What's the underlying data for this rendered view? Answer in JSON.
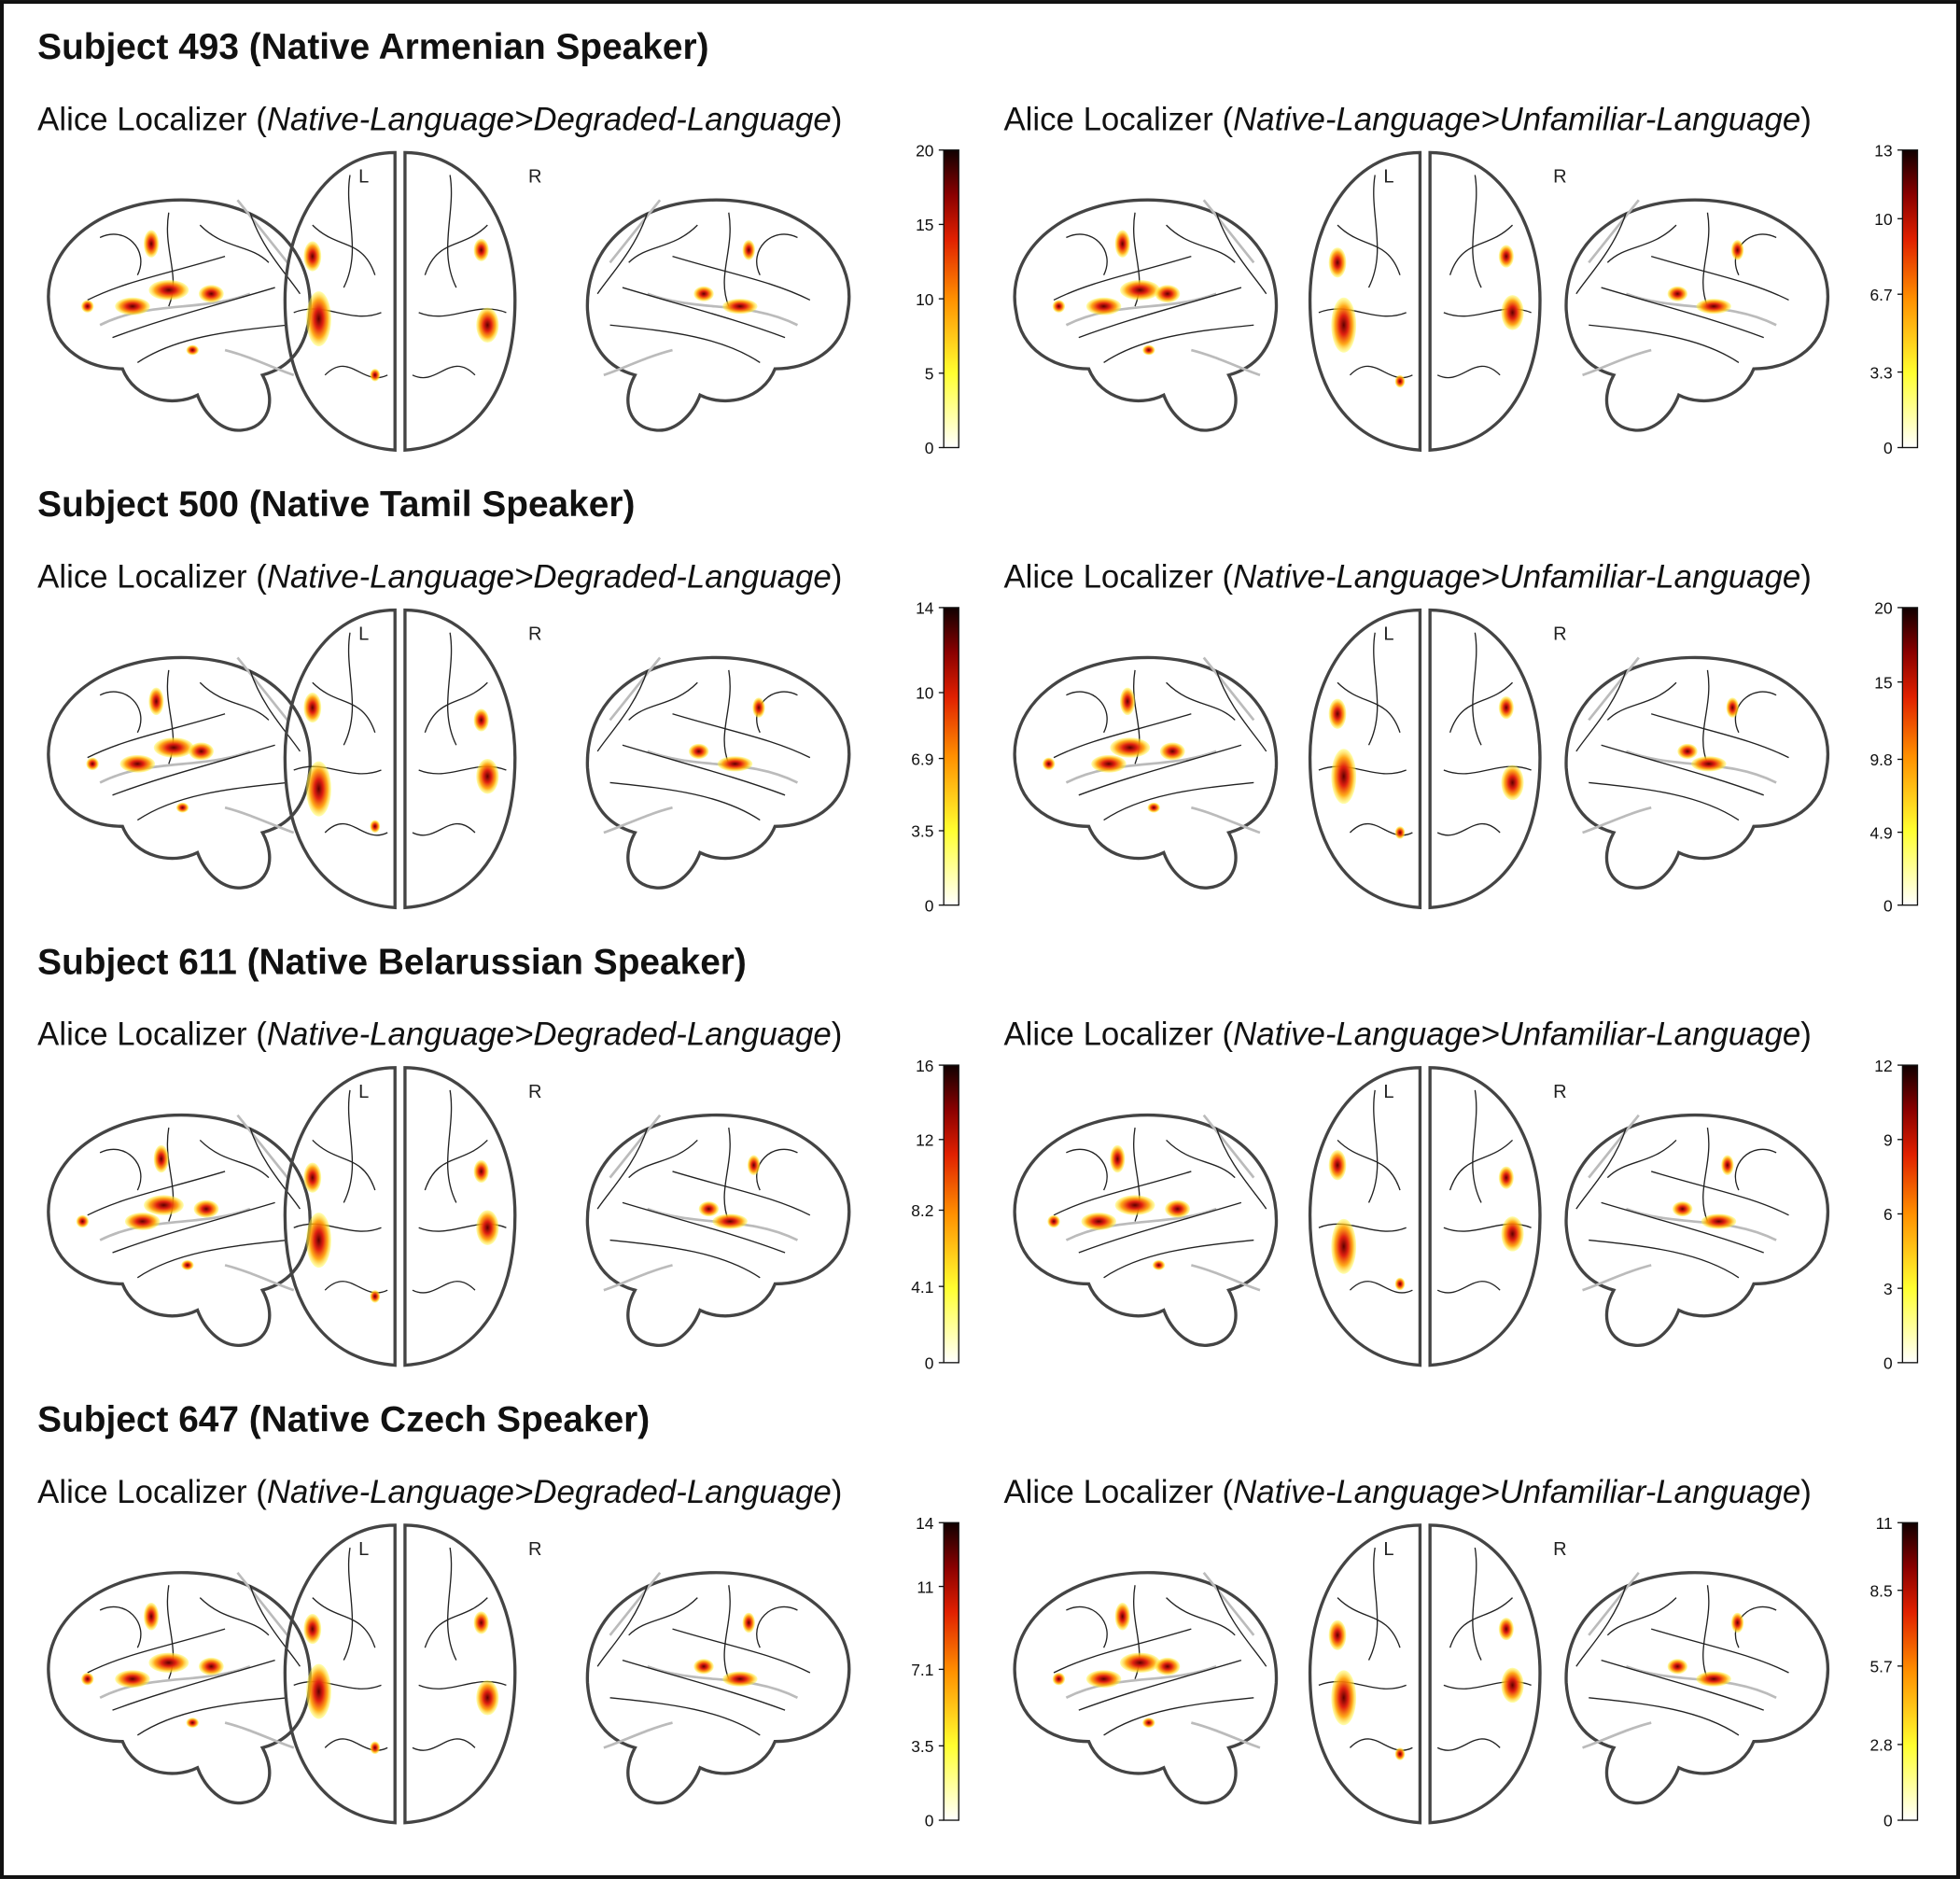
{
  "subjects": [
    {
      "title": "Subject 493 (Native Armenian Speaker)",
      "plots": [
        {
          "prefix": "Alice Localizer (",
          "contrast": "Native-Language>Degraded-Language",
          "suffix": ")",
          "left": "L",
          "right": "R",
          "colorbar": {
            "lim": [
              0,
              20
            ],
            "ticks": [
              0,
              5,
              10,
              15,
              20
            ]
          }
        },
        {
          "prefix": "Alice Localizer (",
          "contrast": "Native-Language>Unfamiliar-Language",
          "suffix": ")",
          "left": "L",
          "right": "R",
          "colorbar": {
            "lim": [
              0,
              13
            ],
            "ticks": [
              0,
              3.3,
              6.7,
              10,
              13
            ]
          }
        }
      ]
    },
    {
      "title": "Subject 500 (Native Tamil Speaker)",
      "plots": [
        {
          "prefix": "Alice Localizer (",
          "contrast": "Native-Language>Degraded-Language",
          "suffix": ")",
          "left": "L",
          "right": "R",
          "colorbar": {
            "lim": [
              0,
              14
            ],
            "ticks": [
              0,
              3.5,
              6.9,
              10,
              14
            ]
          }
        },
        {
          "prefix": "Alice Localizer (",
          "contrast": "Native-Language>Unfamiliar-Language",
          "suffix": ")",
          "left": "L",
          "right": "R",
          "colorbar": {
            "lim": [
              0,
              20
            ],
            "ticks": [
              0,
              4.9,
              9.8,
              15,
              20
            ]
          }
        }
      ]
    },
    {
      "title": "Subject 611 (Native Belarussian Speaker)",
      "plots": [
        {
          "prefix": "Alice Localizer (",
          "contrast": "Native-Language>Degraded-Language",
          "suffix": ")",
          "left": "L",
          "right": "R",
          "colorbar": {
            "lim": [
              0,
              16
            ],
            "ticks": [
              0,
              4.1,
              8.2,
              12,
              16
            ]
          }
        },
        {
          "prefix": "Alice Localizer (",
          "contrast": "Native-Language>Unfamiliar-Language",
          "suffix": ")",
          "left": "L",
          "right": "R",
          "colorbar": {
            "lim": [
              0,
              12
            ],
            "ticks": [
              0,
              3,
              6,
              9,
              12
            ]
          }
        }
      ]
    },
    {
      "title": "Subject 647 (Native Czech Speaker)",
      "plots": [
        {
          "prefix": "Alice Localizer (",
          "contrast": "Native-Language>Degraded-Language",
          "suffix": ")",
          "left": "L",
          "right": "R",
          "colorbar": {
            "lim": [
              0,
              14
            ],
            "ticks": [
              0,
              3.5,
              7.1,
              11,
              14
            ]
          }
        },
        {
          "prefix": "Alice Localizer (",
          "contrast": "Native-Language>Unfamiliar-Language",
          "suffix": ")",
          "left": "L",
          "right": "R",
          "colorbar": {
            "lim": [
              0,
              11
            ],
            "ticks": [
              0,
              2.8,
              5.7,
              8.5,
              11
            ]
          }
        }
      ]
    }
  ]
}
